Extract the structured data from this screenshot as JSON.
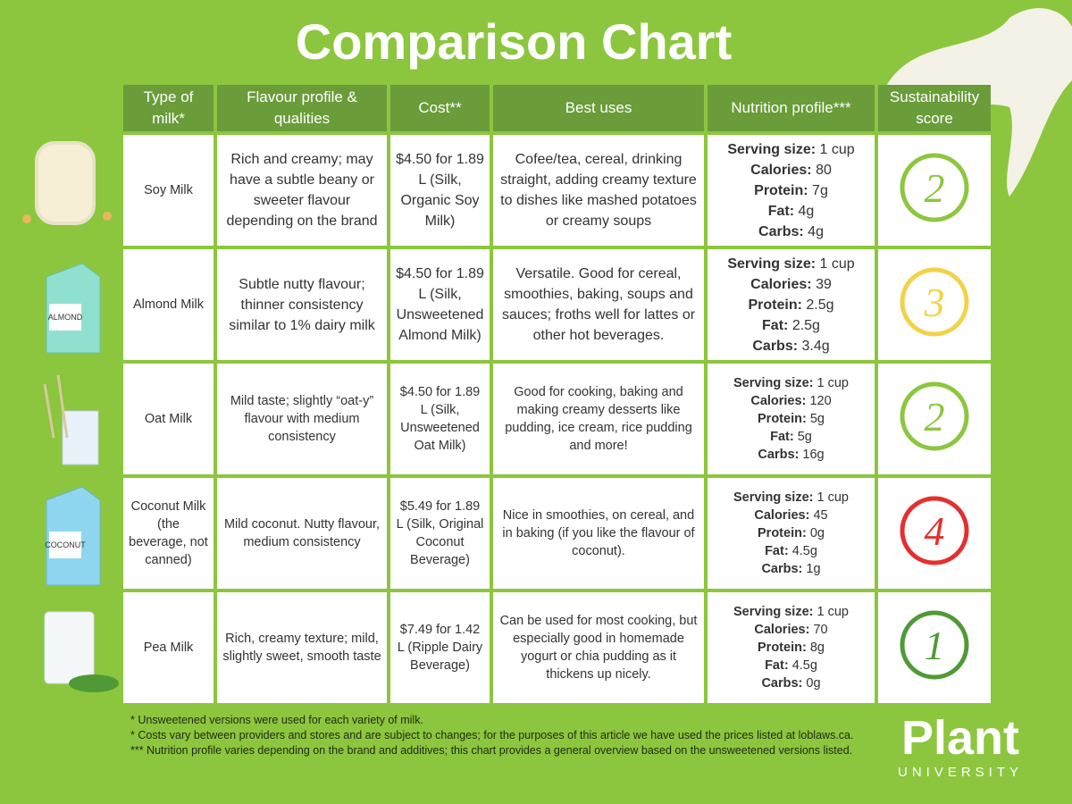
{
  "title": "Comparison Chart",
  "table": {
    "headers": [
      "Type of milk*",
      "Flavour profile & qualities",
      "Cost**",
      "Best uses",
      "Nutrition profile***",
      "Sustainability score"
    ],
    "rows": [
      {
        "type": "Soy Milk",
        "flavour": "Rich and creamy; may have a subtle beany or sweeter flavour depending on the brand",
        "cost": "$4.50 for 1.89 L (Silk, Organic Soy Milk)",
        "uses": "Cofee/tea, cereal, drinking straight, adding creamy texture to dishes like mashed potatoes or creamy soups",
        "nutrition": [
          {
            "label": "Serving size:",
            "value": "1 cup"
          },
          {
            "label": "Calories:",
            "value": "80"
          },
          {
            "label": "Protein:",
            "value": "7g"
          },
          {
            "label": "Fat:",
            "value": "4g"
          },
          {
            "label": "Carbs:",
            "value": "4g"
          }
        ],
        "score": "2",
        "score_color": "#8dc63f"
      },
      {
        "type": "Almond Milk",
        "flavour": "Subtle nutty flavour; thinner consistency similar to 1% dairy milk",
        "cost": "$4.50 for 1.89 L (Silk, Unsweetened Almond Milk)",
        "uses": "Versatile. Good for cereal, smoothies, baking, soups and sauces; froths well for lattes or other hot beverages.",
        "nutrition": [
          {
            "label": "Serving size:",
            "value": "1 cup"
          },
          {
            "label": "Calories:",
            "value": "39"
          },
          {
            "label": "Protein:",
            "value": "2.5g"
          },
          {
            "label": "Fat:",
            "value": "2.5g"
          },
          {
            "label": "Carbs:",
            "value": "3.4g"
          }
        ],
        "score": "3",
        "score_color": "#f3d24a"
      },
      {
        "type": "Oat Milk",
        "flavour": "Mild taste; slightly “oat-y” flavour with medium consistency",
        "cost": "$4.50 for 1.89 L (Silk, Unsweetened Oat Milk)",
        "uses": "Good for cooking, baking and making creamy desserts like pudding, ice cream, rice pudding and more!",
        "nutrition": [
          {
            "label": "Serving size:",
            "value": "1 cup"
          },
          {
            "label": "Calories:",
            "value": "120"
          },
          {
            "label": "Protein:",
            "value": "5g"
          },
          {
            "label": "Fat:",
            "value": "5g"
          },
          {
            "label": "Carbs:",
            "value": "16g"
          }
        ],
        "score": "2",
        "score_color": "#8dc63f"
      },
      {
        "type": "Coconut Milk (the beverage, not canned)",
        "flavour": "Mild coconut. Nutty flavour, medium consistency",
        "cost": "$5.49 for 1.89 L (Silk, Original Coconut Beverage)",
        "uses": "Nice in smoothies, on cereal, and in baking (if you like the flavour of coconut).",
        "nutrition": [
          {
            "label": "Serving size:",
            "value": "1 cup"
          },
          {
            "label": "Calories:",
            "value": "45"
          },
          {
            "label": "Protein:",
            "value": "0g"
          },
          {
            "label": "Fat:",
            "value": "4.5g"
          },
          {
            "label": "Carbs:",
            "value": "1g"
          }
        ],
        "score": "4",
        "score_color": "#e3302f"
      },
      {
        "type": "Pea Milk",
        "flavour": "Rich, creamy texture; mild, slightly sweet, smooth taste",
        "cost": "$7.49 for 1.42 L (Ripple Dairy Beverage)",
        "uses": "Can be used for most cooking, but especially good in homemade yogurt or chia pudding as it thickens up nicely.",
        "nutrition": [
          {
            "label": "Serving size:",
            "value": "1 cup"
          },
          {
            "label": "Calories:",
            "value": "70"
          },
          {
            "label": "Protein:",
            "value": "8g"
          },
          {
            "label": "Fat:",
            "value": "4.5g"
          },
          {
            "label": "Carbs:",
            "value": "0g"
          }
        ],
        "score": "1",
        "score_color": "#4f9a36"
      }
    ]
  },
  "footnotes": [
    "* Unsweetened versions were used for each variety of milk.",
    "* Costs vary between providers and stores and are subject to changes; for the purposes of this article we have used the prices listed at loblaws.ca.",
    "*** Nutrition profile varies depending on the brand and additives; this chart provides a general overview based on the unsweetened versions listed."
  ],
  "logo": {
    "name": "Plant",
    "sub": "UNIVERSITY"
  }
}
